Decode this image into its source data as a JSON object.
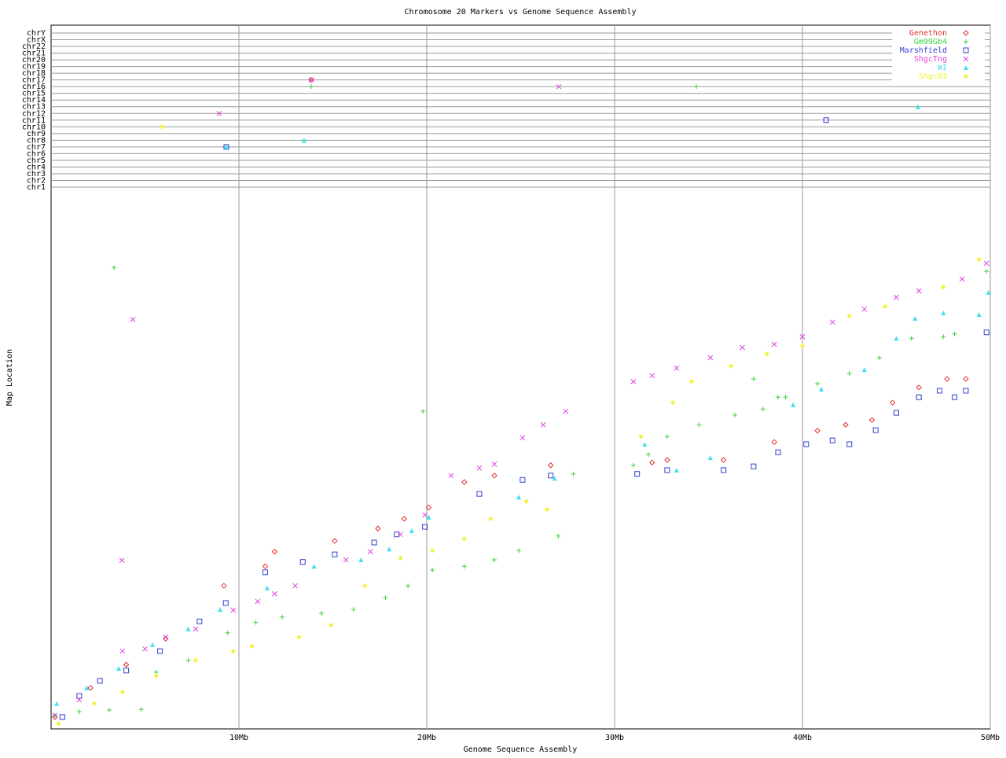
{
  "chart_data": [
    {
      "type": "scatter",
      "title": "Chromosome 20 Markers vs Genome Sequence Assembly",
      "x_label": "Genome Sequence Assembly",
      "y_label": "Map Location",
      "xlim": [
        0,
        50
      ],
      "ylim": [
        0,
        100
      ],
      "xticks": [
        {
          "value": 10,
          "label": "10Mb"
        },
        {
          "value": 20,
          "label": "20Mb"
        },
        {
          "value": 30,
          "label": "30Mb"
        },
        {
          "value": 40,
          "label": "40Mb"
        },
        {
          "value": 50,
          "label": "50Mb"
        }
      ],
      "grid": true,
      "legend": "upper-right",
      "series": [
        {
          "name": "Genethon",
          "color": "#e03030",
          "marker": "diamond",
          "x": [
            0.2,
            2.1,
            4,
            6.1,
            9.2,
            11.4,
            11.9,
            15.1,
            17.4,
            18.8,
            20.1,
            22,
            23.6,
            26.6,
            32,
            32.8,
            35.8,
            38.5,
            40.8,
            42.3,
            43.7,
            44.8,
            46.2,
            47.7,
            48.7
          ],
          "values": [
            2.2,
            7.6,
            11.9,
            16.7,
            26.5,
            30.1,
            32.8,
            34.8,
            37.1,
            38.9,
            41,
            45.7,
            46.9,
            48.8,
            49.3,
            49.8,
            49.8,
            53.1,
            55.2,
            56.3,
            57.2,
            60.4,
            63.2,
            64.8,
            64.8
          ]
        },
        {
          "name": "Gm99Gb4",
          "color": "#40d040",
          "marker": "plus",
          "x": [
            3.35,
            19.8,
            0.2,
            1.5,
            3.1,
            4.8,
            5.6,
            7.3,
            9.4,
            10.9,
            12.3,
            14.4,
            16.1,
            17.8,
            19,
            20.3,
            22,
            23.6,
            24.9,
            27,
            27.8,
            31,
            31.8,
            32.8,
            34.5,
            36.4,
            37.4,
            37.9,
            38.7,
            39.1,
            40.8,
            42.5,
            44.1,
            45.8,
            47.5,
            48.1,
            49.8
          ],
          "values": [
            85.4,
            58.8,
            2.5,
            3.2,
            3.5,
            3.6,
            10.5,
            12.7,
            17.8,
            19.7,
            20.7,
            21.4,
            22.1,
            24.3,
            26.5,
            29.4,
            30.1,
            31.3,
            33,
            35.7,
            47.2,
            48.8,
            50.8,
            54.1,
            56.3,
            58.1,
            64.8,
            59.2,
            61.4,
            61.4,
            63.9,
            65.8,
            68.7,
            72.3,
            72.6,
            73.1,
            84.7
          ]
        },
        {
          "name": "Marshfield",
          "color": "#3040d0",
          "marker": "square",
          "x": [
            0.6,
            1.5,
            2.6,
            4,
            5.8,
            7.9,
            9.3,
            11.4,
            13.4,
            15.1,
            17.2,
            18.4,
            19.9,
            22.8,
            25.1,
            26.6,
            31.2,
            32.8,
            35.8,
            37.4,
            38.7,
            40.2,
            41.6,
            42.5,
            43.9,
            45,
            46.2,
            47.3,
            48.1,
            48.7,
            49.8
          ],
          "values": [
            2.2,
            6.1,
            8.9,
            10.8,
            14.4,
            19.9,
            23.3,
            29,
            30.9,
            32.3,
            34.5,
            36,
            37.4,
            43.5,
            46.1,
            46.9,
            47.2,
            47.9,
            47.9,
            48.6,
            51.2,
            52.7,
            53.4,
            52.7,
            55.3,
            58.5,
            61.4,
            62.6,
            61.4,
            62.6,
            73.4
          ]
        },
        {
          "name": "ShgcTng",
          "color": "#e040e0",
          "marker": "cross",
          "x": [
            4.35,
            3.77,
            0.2,
            1.5,
            3.8,
            5,
            6.1,
            7.7,
            9.7,
            11,
            11.9,
            13,
            15.7,
            17,
            18.6,
            19.9,
            21.3,
            22.8,
            23.6,
            25.1,
            26.2,
            27.4,
            31,
            32,
            33.3,
            35.1,
            36.8,
            38.5,
            40,
            41.6,
            43.3,
            45,
            46.2,
            48.5,
            49.8
          ],
          "values": [
            75.8,
            31.2,
            2.5,
            5.4,
            14.4,
            14.8,
            17,
            18.5,
            22,
            23.6,
            25,
            26.5,
            31.3,
            32.8,
            36,
            39.6,
            46.9,
            48.3,
            49,
            53.9,
            56.3,
            58.8,
            64.3,
            65.4,
            66.8,
            68.7,
            70.6,
            71.2,
            72.6,
            75.3,
            77.7,
            79.9,
            81.1,
            83.3,
            86.2
          ]
        },
        {
          "name": "WI",
          "color": "#40e0f0",
          "marker": "triangle",
          "x": [
            0.3,
            1.9,
            3.6,
            5.4,
            7.3,
            9,
            11.5,
            14,
            16.5,
            18,
            19.2,
            20.1,
            24.9,
            26.8,
            31.6,
            33.3,
            35.1,
            39.5,
            41,
            43.3,
            45,
            46,
            47.5,
            49.4,
            49.9
          ],
          "values": [
            4.7,
            7.6,
            11.2,
            15.6,
            18.5,
            22.1,
            26.1,
            30.1,
            31.3,
            33.3,
            36.7,
            39.2,
            42.9,
            46.4,
            52.7,
            47.9,
            50.2,
            60,
            62.9,
            66.5,
            72.3,
            76,
            77,
            76.7,
            80.8
          ]
        },
        {
          "name": "Shgc03",
          "color": "#f0f030",
          "marker": "star",
          "x": [
            0.4,
            2.3,
            3.8,
            5.6,
            7.7,
            9.7,
            10.7,
            13.2,
            14.9,
            16.7,
            18.6,
            20.3,
            22,
            23.4,
            25.3,
            26.4,
            31.4,
            33.1,
            34.1,
            36.2,
            38.1,
            40,
            42.5,
            44.4,
            47.5,
            49.4
          ],
          "values": [
            1,
            4.7,
            6.8,
            9.8,
            12.7,
            14.4,
            15.3,
            17,
            19.2,
            26.5,
            31.6,
            33,
            35.2,
            38.9,
            42.1,
            40.6,
            54.1,
            60.4,
            64.3,
            67.2,
            69.4,
            70.9,
            76.4,
            78.2,
            81.8,
            86.9
          ]
        }
      ]
    },
    {
      "type": "category-scatter",
      "categories": [
        "chr1",
        "chr2",
        "chr3",
        "chr4",
        "chr5",
        "chr6",
        "chr7",
        "chr8",
        "chr9",
        "chr10",
        "chr11",
        "chr12",
        "chr13",
        "chr14",
        "chr15",
        "chr16",
        "chr17",
        "chr18",
        "chr19",
        "chr20",
        "chr21",
        "chr22",
        "chrX",
        "chrY"
      ],
      "series": [
        {
          "x": [
            13.85
          ],
          "values": [
            "chr17"
          ]
        },
        {
          "x": [
            13.85,
            13.47,
            34.35,
            46.15
          ],
          "values": [
            "chr16",
            "chr8",
            "chr16",
            "chr13"
          ]
        },
        {
          "x": [
            9.33,
            41.26
          ],
          "values": [
            "chr7",
            "chr11"
          ]
        },
        {
          "x": [
            8.95,
            13.85,
            27.03
          ],
          "values": [
            "chr12",
            "chr17",
            "chr16"
          ]
        },
        {
          "x": [
            9.33,
            13.47,
            46.15
          ],
          "values": [
            "chr7",
            "chr8",
            "chr13"
          ]
        },
        {
          "x": [
            5.9
          ],
          "values": [
            "chr10"
          ]
        }
      ]
    }
  ]
}
